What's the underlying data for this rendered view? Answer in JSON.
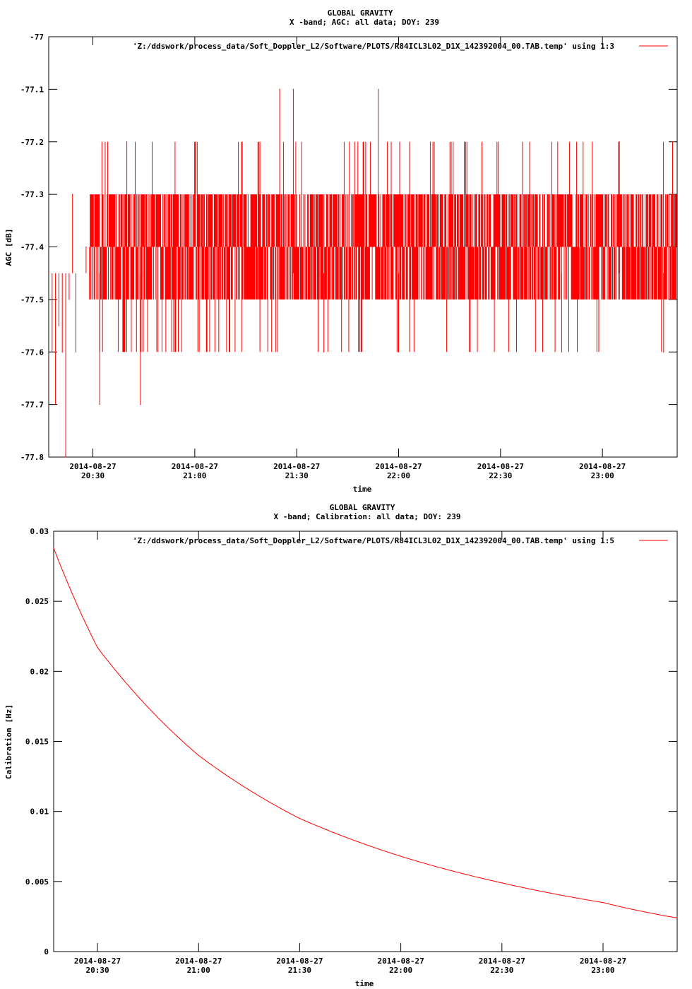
{
  "colors": {
    "series": "#ff0000",
    "axis": "#000000",
    "background": "#ffffff"
  },
  "chart_data": [
    {
      "type": "line",
      "title": "GLOBAL GRAVITY",
      "subtitle": "X -band; AGC: all data; DOY: 239",
      "xlabel": "time",
      "ylabel": "AGC [dB]",
      "legend_position": "top-right",
      "grid": false,
      "xlim": [
        "2014-08-27 20:17",
        "2014-08-27 23:22"
      ],
      "ylim": [
        -77.8,
        -77.0
      ],
      "x_ticks": [
        {
          "date": "2014-08-27",
          "time": "20:30",
          "value": "2014-08-27 20:30"
        },
        {
          "date": "2014-08-27",
          "time": "21:00",
          "value": "2014-08-27 21:00"
        },
        {
          "date": "2014-08-27",
          "time": "21:30",
          "value": "2014-08-27 21:30"
        },
        {
          "date": "2014-08-27",
          "time": "22:00",
          "value": "2014-08-27 22:00"
        },
        {
          "date": "2014-08-27",
          "time": "22:30",
          "value": "2014-08-27 22:30"
        },
        {
          "date": "2014-08-27",
          "time": "23:00",
          "value": "2014-08-27 23:00"
        }
      ],
      "y_ticks": [
        "-77",
        "-77.1",
        "-77.2",
        "-77.3",
        "-77.4",
        "-77.5",
        "-77.6",
        "-77.7",
        "-77.8"
      ],
      "series": [
        {
          "name": "'Z:/ddswork/process_data/Soft_Doppler_L2/Software/PLOTS/R84ICL3L02_D1X_142392004_00.TAB.temp' using 1:3",
          "summary": {
            "typical_min": -77.5,
            "typical_max": -77.3,
            "min": -77.8,
            "max": -77.1
          },
          "points": [
            {
              "x": "20:17",
              "y": -77.45
            },
            {
              "x": "20:18",
              "y": -77.6
            },
            {
              "x": "20:19",
              "y": -77.7
            },
            {
              "x": "20:20",
              "y": -77.55
            },
            {
              "x": "20:21",
              "y": -77.6
            },
            {
              "x": "20:22",
              "y": -77.8
            },
            {
              "x": "20:23",
              "y": -77.5
            },
            {
              "x": "20:24",
              "y": -77.3
            },
            {
              "x": "20:25",
              "y": -77.6
            },
            {
              "x": "20:28",
              "y": -77.4
            },
            {
              "x": "20:32",
              "y": -77.7
            },
            {
              "x": "20:40",
              "y": -77.2
            },
            {
              "x": "20:44",
              "y": -77.7
            },
            {
              "x": "21:25",
              "y": -77.1
            },
            {
              "x": "21:29",
              "y": -77.1
            },
            {
              "x": "21:38",
              "y": -77.6
            },
            {
              "x": "21:54",
              "y": -77.1
            },
            {
              "x": "22:00",
              "y": -77.6
            },
            {
              "x": "22:23",
              "y": -77.3
            },
            {
              "x": "22:48",
              "y": -77.6
            },
            {
              "x": "23:05",
              "y": -77.2
            },
            {
              "x": "23:18",
              "y": -77.6
            },
            {
              "x": "23:21",
              "y": -77.4
            }
          ]
        }
      ]
    },
    {
      "type": "line",
      "title": "GLOBAL GRAVITY",
      "subtitle": "X -band; Calibration: all data; DOY: 239",
      "xlabel": "time",
      "ylabel": "Calibration [Hz]",
      "legend_position": "top-right",
      "grid": false,
      "xlim": [
        "2014-08-27 20:17",
        "2014-08-27 23:22"
      ],
      "ylim": [
        0,
        0.03
      ],
      "x_ticks": [
        {
          "date": "2014-08-27",
          "time": "20:30",
          "value": "2014-08-27 20:30"
        },
        {
          "date": "2014-08-27",
          "time": "21:00",
          "value": "2014-08-27 21:00"
        },
        {
          "date": "2014-08-27",
          "time": "21:30",
          "value": "2014-08-27 21:30"
        },
        {
          "date": "2014-08-27",
          "time": "22:00",
          "value": "2014-08-27 22:00"
        },
        {
          "date": "2014-08-27",
          "time": "22:30",
          "value": "2014-08-27 22:30"
        },
        {
          "date": "2014-08-27",
          "time": "23:00",
          "value": "2014-08-27 23:00"
        }
      ],
      "y_ticks": [
        "0.03",
        "0.025",
        "0.02",
        "0.015",
        "0.01",
        "0.005",
        "0"
      ],
      "series": [
        {
          "name": "'Z:/ddswork/process_data/Soft_Doppler_L2/Software/PLOTS/R84ICL3L02_D1X_142392004_00.TAB.temp' using 1:5",
          "points": [
            {
              "x": "20:17",
              "y": 0.0288
            },
            {
              "x": "20:30",
              "y": 0.0217
            },
            {
              "x": "21:00",
              "y": 0.014
            },
            {
              "x": "21:30",
              "y": 0.0095
            },
            {
              "x": "22:00",
              "y": 0.0068
            },
            {
              "x": "22:30",
              "y": 0.0049
            },
            {
              "x": "23:00",
              "y": 0.0035
            },
            {
              "x": "23:22",
              "y": 0.0024
            }
          ]
        }
      ]
    }
  ]
}
